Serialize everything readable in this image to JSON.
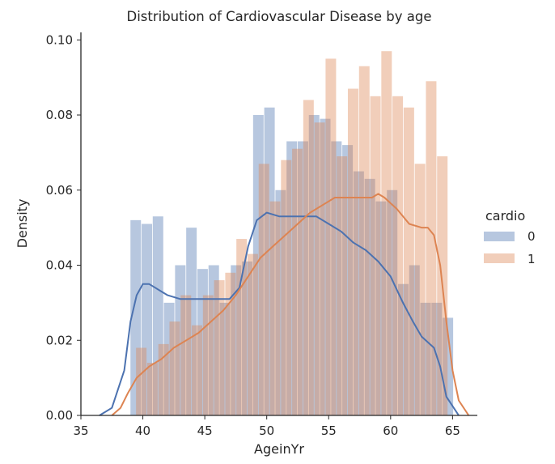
{
  "chart_data": {
    "type": "histogram_kde",
    "title": "Distribution of Cardiovascular Disease by age",
    "xlabel": "AgeinYr",
    "ylabel": "Density",
    "xlim": [
      35,
      67
    ],
    "ylim": [
      0,
      0.102
    ],
    "xticks": [
      35,
      40,
      45,
      50,
      55,
      60,
      65
    ],
    "yticks": [
      0.0,
      0.02,
      0.04,
      0.06,
      0.08,
      0.1
    ],
    "ytick_labels": [
      "0.00",
      "0.02",
      "0.04",
      "0.06",
      "0.08",
      "0.10"
    ],
    "grid": false,
    "legend": {
      "title": "cardio",
      "position": "right"
    },
    "bin_width": 0.9,
    "series": [
      {
        "name": "0",
        "color": "#4c72b0",
        "bins": [
          {
            "x": 39.0,
            "y": 0.052
          },
          {
            "x": 39.9,
            "y": 0.051
          },
          {
            "x": 40.8,
            "y": 0.053
          },
          {
            "x": 41.7,
            "y": 0.03
          },
          {
            "x": 42.6,
            "y": 0.04
          },
          {
            "x": 43.5,
            "y": 0.05
          },
          {
            "x": 44.4,
            "y": 0.039
          },
          {
            "x": 45.3,
            "y": 0.04
          },
          {
            "x": 46.2,
            "y": 0.03
          },
          {
            "x": 47.1,
            "y": 0.04
          },
          {
            "x": 48.0,
            "y": 0.041
          },
          {
            "x": 48.9,
            "y": 0.08
          },
          {
            "x": 49.8,
            "y": 0.082
          },
          {
            "x": 50.7,
            "y": 0.06
          },
          {
            "x": 51.6,
            "y": 0.073
          },
          {
            "x": 52.5,
            "y": 0.073
          },
          {
            "x": 53.4,
            "y": 0.08
          },
          {
            "x": 54.3,
            "y": 0.079
          },
          {
            "x": 55.2,
            "y": 0.073
          },
          {
            "x": 56.1,
            "y": 0.072
          },
          {
            "x": 57.0,
            "y": 0.065
          },
          {
            "x": 57.9,
            "y": 0.063
          },
          {
            "x": 58.8,
            "y": 0.057
          },
          {
            "x": 59.7,
            "y": 0.06
          },
          {
            "x": 60.6,
            "y": 0.035
          },
          {
            "x": 61.5,
            "y": 0.04
          },
          {
            "x": 62.4,
            "y": 0.03
          },
          {
            "x": 63.3,
            "y": 0.03
          },
          {
            "x": 64.2,
            "y": 0.026
          }
        ],
        "kde": [
          [
            36.5,
            0.0
          ],
          [
            37.5,
            0.002
          ],
          [
            38.5,
            0.012
          ],
          [
            39.0,
            0.025
          ],
          [
            39.5,
            0.032
          ],
          [
            40.0,
            0.035
          ],
          [
            40.5,
            0.035
          ],
          [
            41.0,
            0.034
          ],
          [
            41.5,
            0.033
          ],
          [
            42.0,
            0.032
          ],
          [
            43.0,
            0.031
          ],
          [
            44.0,
            0.031
          ],
          [
            45.0,
            0.031
          ],
          [
            46.0,
            0.031
          ],
          [
            47.0,
            0.031
          ],
          [
            47.8,
            0.034
          ],
          [
            48.5,
            0.045
          ],
          [
            49.2,
            0.052
          ],
          [
            50.0,
            0.054
          ],
          [
            51.0,
            0.053
          ],
          [
            52.0,
            0.053
          ],
          [
            53.0,
            0.053
          ],
          [
            54.0,
            0.053
          ],
          [
            55.0,
            0.051
          ],
          [
            56.0,
            0.049
          ],
          [
            57.0,
            0.046
          ],
          [
            58.0,
            0.044
          ],
          [
            59.0,
            0.041
          ],
          [
            60.0,
            0.037
          ],
          [
            61.0,
            0.03
          ],
          [
            61.8,
            0.025
          ],
          [
            62.5,
            0.021
          ],
          [
            63.5,
            0.018
          ],
          [
            64.0,
            0.013
          ],
          [
            64.5,
            0.005
          ],
          [
            65.5,
            0.0
          ]
        ]
      },
      {
        "name": "1",
        "color": "#dd8452",
        "bins": [
          {
            "x": 39.45,
            "y": 0.018
          },
          {
            "x": 40.35,
            "y": 0.014
          },
          {
            "x": 41.25,
            "y": 0.019
          },
          {
            "x": 42.15,
            "y": 0.025
          },
          {
            "x": 43.05,
            "y": 0.032
          },
          {
            "x": 43.95,
            "y": 0.024
          },
          {
            "x": 44.85,
            "y": 0.032
          },
          {
            "x": 45.75,
            "y": 0.036
          },
          {
            "x": 46.65,
            "y": 0.038
          },
          {
            "x": 47.55,
            "y": 0.047
          },
          {
            "x": 48.45,
            "y": 0.043
          },
          {
            "x": 49.35,
            "y": 0.067
          },
          {
            "x": 50.25,
            "y": 0.057
          },
          {
            "x": 51.15,
            "y": 0.068
          },
          {
            "x": 52.05,
            "y": 0.071
          },
          {
            "x": 52.95,
            "y": 0.084
          },
          {
            "x": 53.85,
            "y": 0.078
          },
          {
            "x": 54.75,
            "y": 0.095
          },
          {
            "x": 55.65,
            "y": 0.069
          },
          {
            "x": 56.55,
            "y": 0.087
          },
          {
            "x": 57.45,
            "y": 0.093
          },
          {
            "x": 58.35,
            "y": 0.085
          },
          {
            "x": 59.25,
            "y": 0.097
          },
          {
            "x": 60.15,
            "y": 0.085
          },
          {
            "x": 61.05,
            "y": 0.082
          },
          {
            "x": 61.95,
            "y": 0.067
          },
          {
            "x": 62.85,
            "y": 0.089
          },
          {
            "x": 63.75,
            "y": 0.069
          }
        ],
        "kde": [
          [
            37.5,
            0.0
          ],
          [
            38.2,
            0.002
          ],
          [
            38.8,
            0.006
          ],
          [
            39.5,
            0.01
          ],
          [
            40.5,
            0.013
          ],
          [
            41.5,
            0.015
          ],
          [
            42.5,
            0.018
          ],
          [
            43.5,
            0.02
          ],
          [
            44.5,
            0.022
          ],
          [
            45.5,
            0.025
          ],
          [
            46.5,
            0.028
          ],
          [
            47.5,
            0.032
          ],
          [
            48.5,
            0.037
          ],
          [
            49.5,
            0.042
          ],
          [
            50.5,
            0.045
          ],
          [
            51.5,
            0.048
          ],
          [
            52.5,
            0.051
          ],
          [
            53.5,
            0.054
          ],
          [
            54.5,
            0.056
          ],
          [
            55.5,
            0.058
          ],
          [
            56.5,
            0.058
          ],
          [
            57.5,
            0.058
          ],
          [
            58.5,
            0.058
          ],
          [
            59.0,
            0.059
          ],
          [
            59.5,
            0.058
          ],
          [
            60.5,
            0.055
          ],
          [
            61.5,
            0.051
          ],
          [
            62.5,
            0.05
          ],
          [
            63.0,
            0.05
          ],
          [
            63.5,
            0.048
          ],
          [
            64.0,
            0.04
          ],
          [
            64.5,
            0.025
          ],
          [
            65.0,
            0.012
          ],
          [
            65.5,
            0.004
          ],
          [
            66.3,
            0.0
          ]
        ]
      }
    ]
  }
}
